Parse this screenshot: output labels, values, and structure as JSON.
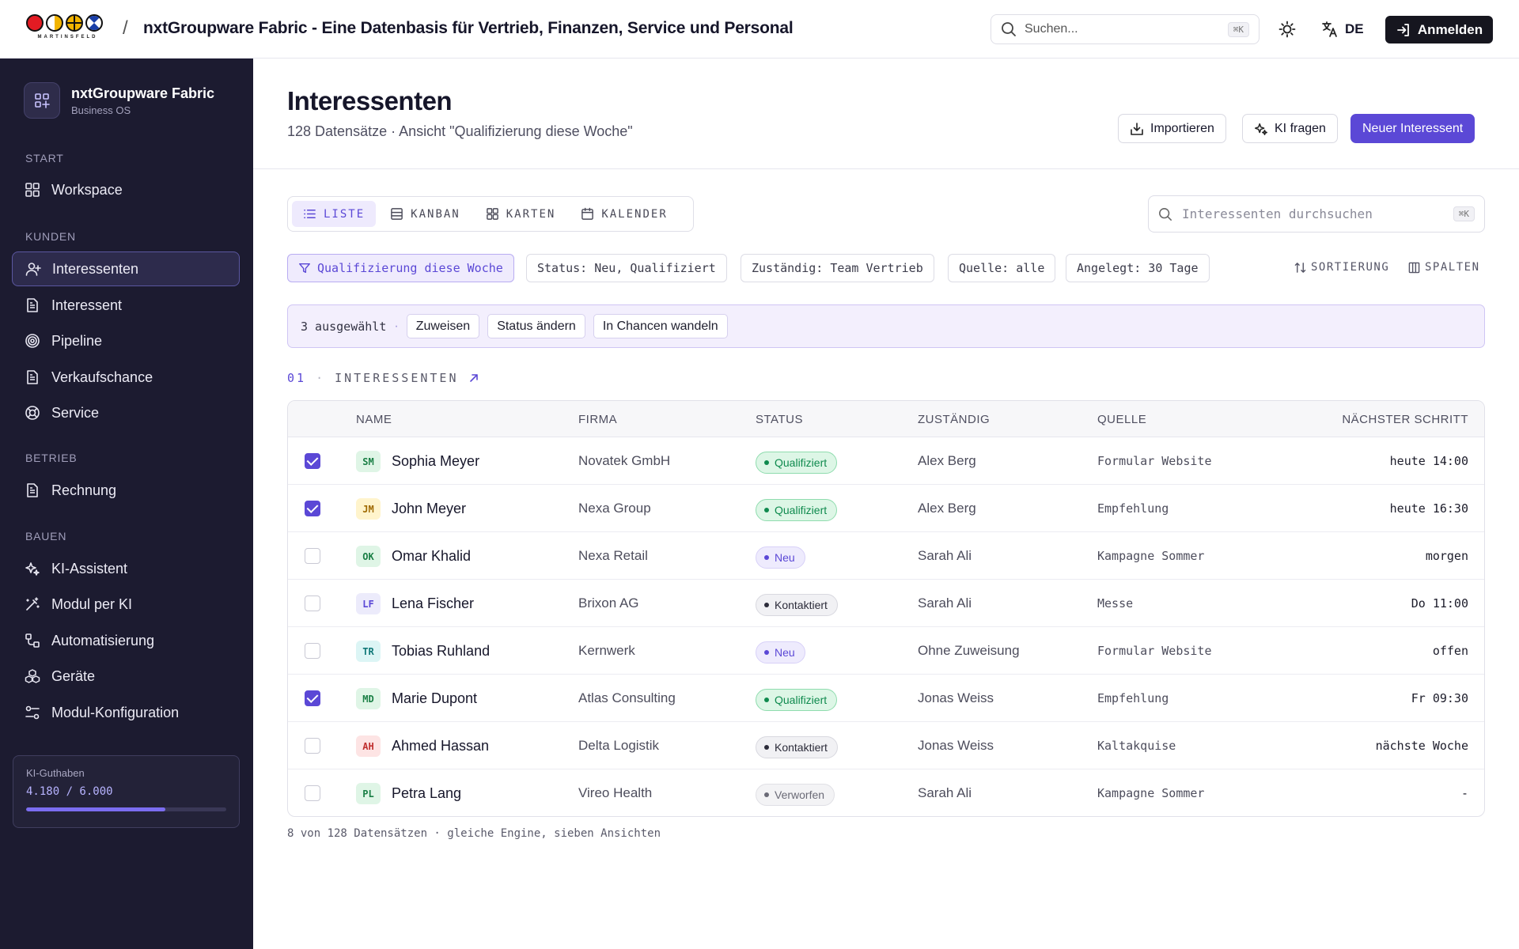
{
  "header": {
    "brand_word": "MARTINSFELD",
    "separator": "/",
    "title": "nxtGroupware Fabric - Eine Datenbasis für Vertrieb, Finanzen, Service und Personal",
    "search_placeholder": "Suchen...",
    "search_shortcut": "⌘K",
    "theme_icon": "sun-icon",
    "language": "DE",
    "login_label": "Anmelden"
  },
  "sidebar": {
    "workspace_name": "nxtGroupware Fabric",
    "workspace_sub": "Business OS",
    "sections": [
      {
        "label": "START",
        "items": [
          {
            "label": "Workspace",
            "icon": "grid-icon"
          }
        ]
      },
      {
        "label": "KUNDEN",
        "items": [
          {
            "label": "Interessenten",
            "icon": "user-plus-icon",
            "active": true
          },
          {
            "label": "Interessent",
            "icon": "document-icon"
          },
          {
            "label": "Pipeline",
            "icon": "target-icon"
          },
          {
            "label": "Verkaufschance",
            "icon": "document-icon"
          },
          {
            "label": "Service",
            "icon": "lifebuoy-icon"
          }
        ]
      },
      {
        "label": "BETRIEB",
        "items": [
          {
            "label": "Rechnung",
            "icon": "document-icon"
          }
        ]
      },
      {
        "label": "BAUEN",
        "items": [
          {
            "label": "KI-Assistent",
            "icon": "sparkles-icon"
          },
          {
            "label": "Modul per KI",
            "icon": "magic-wand-icon"
          },
          {
            "label": "Automatisierung",
            "icon": "workflow-icon"
          },
          {
            "label": "Geräte",
            "icon": "boxes-icon"
          },
          {
            "label": "Modul-Konfiguration",
            "icon": "sliders-icon"
          }
        ]
      }
    ],
    "credit": {
      "label": "KI-Guthaben",
      "value": "4.180 / 6.000",
      "fraction": 0.697
    }
  },
  "page": {
    "title": "Interessenten",
    "subtitle": "128 Datensätze · Ansicht \"Qualifizierung diese Woche\"",
    "actions": {
      "import": "Importieren",
      "ask_ai": "KI fragen",
      "new": "Neuer Interessent"
    }
  },
  "view_tabs": [
    {
      "label": "LISTE",
      "icon": "list-icon",
      "active": true
    },
    {
      "label": "KANBAN",
      "icon": "kanban-icon"
    },
    {
      "label": "KARTEN",
      "icon": "cards-icon"
    },
    {
      "label": "KALENDER",
      "icon": "calendar-icon"
    }
  ],
  "list_search": {
    "placeholder": "Interessenten durchsuchen",
    "shortcut": "⌘K"
  },
  "filters": {
    "view": "Qualifizierung diese Woche",
    "status": "Status: Neu, Qualifiziert",
    "owner": "Zuständig: Team Vertrieb",
    "source": "Quelle: alle",
    "created": "Angelegt: 30 Tage",
    "sort_label": "SORTIERUNG",
    "columns_label": "SPALTEN"
  },
  "selection": {
    "count_text": "3 ausgewählt",
    "dot": "·",
    "assign": "Zuweisen",
    "change_status": "Status ändern",
    "convert": "In Chancen wandeln"
  },
  "section": {
    "number": "01",
    "sep": "·",
    "label": "INTERESSENTEN"
  },
  "table": {
    "columns": {
      "name": "NAME",
      "company": "FIRMA",
      "status": "STATUS",
      "owner": "ZUSTÄNDIG",
      "source": "QUELLE",
      "next": "NÄCHSTER SCHRITT"
    },
    "rows": [
      {
        "initials": "SM",
        "name": "Sophia Meyer",
        "company": "Novatek GmbH",
        "status": "Qualifiziert",
        "owner": "Alex Berg",
        "source": "Formular Website",
        "next": "heute 14:00",
        "checked": true
      },
      {
        "initials": "JM",
        "name": "John Meyer",
        "company": "Nexa Group",
        "status": "Qualifiziert",
        "owner": "Alex Berg",
        "source": "Empfehlung",
        "next": "heute 16:30",
        "checked": true
      },
      {
        "initials": "OK",
        "name": "Omar Khalid",
        "company": "Nexa Retail",
        "status": "Neu",
        "owner": "Sarah Ali",
        "source": "Kampagne Sommer",
        "next": "morgen",
        "checked": false
      },
      {
        "initials": "LF",
        "name": "Lena Fischer",
        "company": "Brixon AG",
        "status": "Kontaktiert",
        "owner": "Sarah Ali",
        "source": "Messe",
        "next": "Do 11:00",
        "checked": false
      },
      {
        "initials": "TR",
        "name": "Tobias Ruhland",
        "company": "Kernwerk",
        "status": "Neu",
        "owner": "Ohne Zuweisung",
        "source": "Formular Website",
        "next": "offen",
        "checked": false
      },
      {
        "initials": "MD",
        "name": "Marie Dupont",
        "company": "Atlas Consulting",
        "status": "Qualifiziert",
        "owner": "Jonas Weiss",
        "source": "Empfehlung",
        "next": "Fr 09:30",
        "checked": true
      },
      {
        "initials": "AH",
        "name": "Ahmed Hassan",
        "company": "Delta Logistik",
        "status": "Kontaktiert",
        "owner": "Jonas Weiss",
        "source": "Kaltakquise",
        "next": "nächste Woche",
        "checked": false
      },
      {
        "initials": "PL",
        "name": "Petra Lang",
        "company": "Vireo Health",
        "status": "Verworfen",
        "owner": "Sarah Ali",
        "source": "Kampagne Sommer",
        "next": "-",
        "checked": false
      }
    ]
  },
  "footer_note": "8 von 128 Datensätzen · gleiche Engine, sieben Ansichten",
  "colors": {
    "accent": "#5b48d6",
    "sidebar_bg": "#1c1b30",
    "qualifiziert": "#0f8a4e",
    "neu": "#5b48d6",
    "kontaktiert": "#2c2c3a",
    "verworfen": "#7a7a86"
  }
}
